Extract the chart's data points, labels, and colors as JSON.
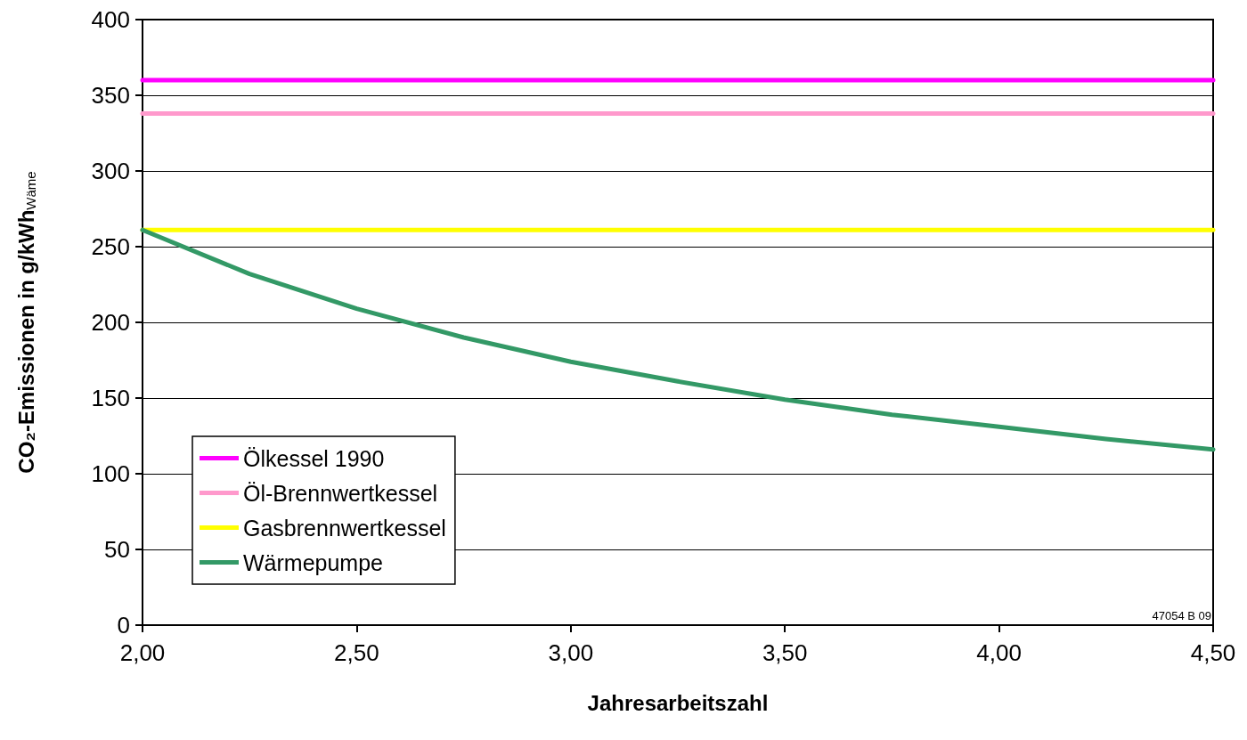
{
  "chart_data": {
    "type": "line",
    "xlabel": "Jahresarbeitszahl",
    "ylabel": "CO₂-Emissionen in g/kWh$_{Wäme}$",
    "xlim": [
      2,
      4.5
    ],
    "xticks": [
      {
        "value": 2,
        "label": "2,00"
      },
      {
        "value": 2.5,
        "label": "2,50"
      },
      {
        "value": 3,
        "label": "3,00"
      },
      {
        "value": 3.5,
        "label": "3,50"
      },
      {
        "value": 4,
        "label": "4,00"
      },
      {
        "value": 4.5,
        "label": "4,50"
      }
    ],
    "ylim": [
      0,
      400
    ],
    "yticks": [
      0,
      50,
      100,
      150,
      200,
      250,
      300,
      350,
      400
    ],
    "grid": "y",
    "legend": "bottom left",
    "marker": "none",
    "line_style": "solid",
    "annotations": [
      "47054 B 09"
    ],
    "series": [
      {
        "name": "Ölkessel 1990",
        "color": "#ff00ff",
        "x": [
          2,
          4.5
        ],
        "values": [
          360,
          360
        ]
      },
      {
        "name": "Öl-Brennwertkessel",
        "color": "#ff99cc",
        "x": [
          2,
          4.5
        ],
        "values": [
          338,
          338
        ]
      },
      {
        "name": "Gasbrennwertkessel",
        "color": "#ffff00",
        "x": [
          2,
          4.5
        ],
        "values": [
          261,
          261
        ]
      },
      {
        "name": "Wärmepumpe",
        "color": "#339966",
        "x": [
          2,
          2.25,
          2.5,
          2.75,
          3,
          3.25,
          3.5,
          3.75,
          4,
          4.25,
          4.5
        ],
        "values": [
          261,
          232,
          209,
          190,
          174,
          161,
          149,
          139,
          131,
          123,
          116
        ]
      }
    ]
  }
}
